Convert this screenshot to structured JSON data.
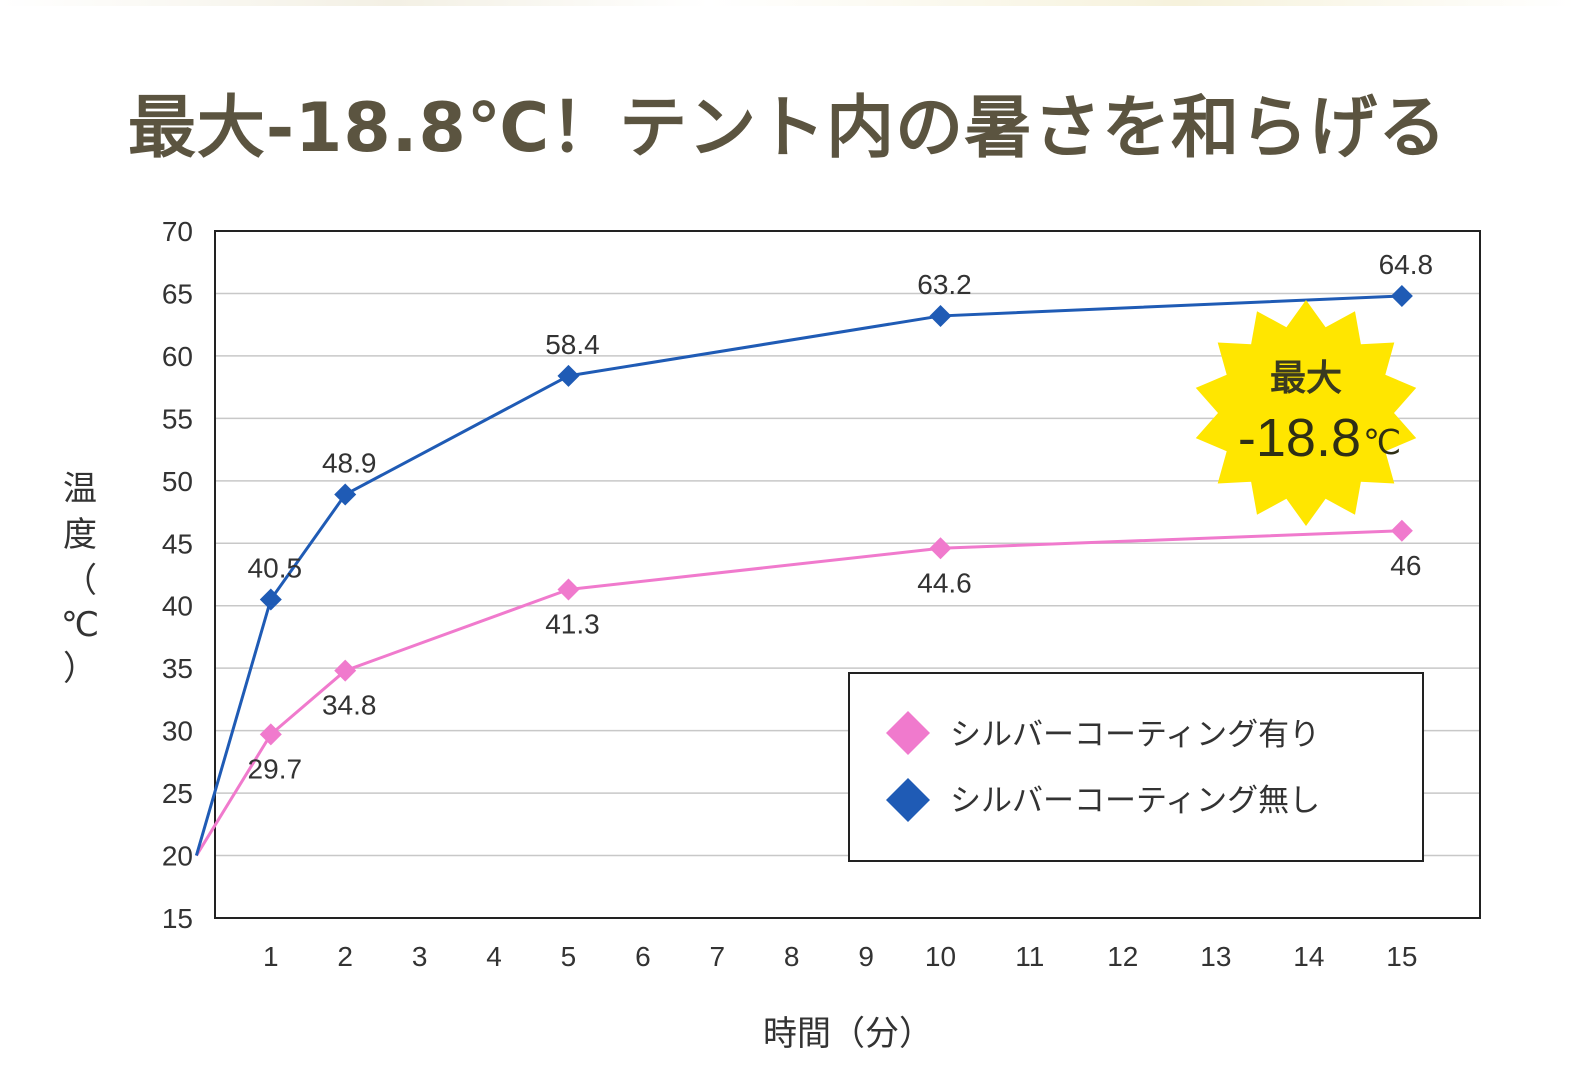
{
  "headline": "最大-18.8℃！テント内の暑さを和らげる",
  "badge": {
    "line1": "最大",
    "value": "-18.8",
    "unit": "℃",
    "color": "#ffe600"
  },
  "chart_data": {
    "type": "line",
    "title": "最大-18.8℃！テント内の暑さを和らげる",
    "xlabel": "時間（分）",
    "ylabel_chars": [
      "温",
      "度",
      "（",
      "℃",
      "）"
    ],
    "xlim": [
      0.25,
      17.25
    ],
    "ylim": [
      15,
      70
    ],
    "x_ticks": [
      1,
      2,
      3,
      4,
      5,
      6,
      7,
      8,
      9,
      10,
      11,
      12,
      13,
      14,
      15
    ],
    "x_tick_labels": [
      "1",
      "2",
      "3",
      "4",
      "5",
      "6",
      "7",
      "8",
      "9",
      "10",
      "11",
      "12",
      "13",
      "14",
      "15"
    ],
    "x_tick_slots": [
      1,
      2,
      3,
      4,
      5,
      6,
      7,
      8,
      9,
      10,
      11.2,
      12.45,
      13.7,
      14.95,
      16.2
    ],
    "y_ticks": [
      15,
      20,
      25,
      30,
      35,
      40,
      45,
      50,
      55,
      60,
      65,
      70
    ],
    "grid": true,
    "legend_position": "bottom-right",
    "series": [
      {
        "name": "シルバーコーティング有り",
        "color": "#f07acd",
        "x": [
          0,
          1,
          2,
          5,
          10,
          15
        ],
        "values": [
          20,
          29.7,
          34.8,
          41.3,
          44.6,
          46
        ],
        "labels": [
          "",
          "29.7",
          "34.8",
          "41.3",
          "44.6",
          "46"
        ],
        "label_side": [
          "",
          "below",
          "below",
          "below",
          "below",
          "below"
        ]
      },
      {
        "name": "シルバーコーティング無し",
        "color": "#1f5bb5",
        "x": [
          0,
          1,
          2,
          5,
          10,
          15
        ],
        "values": [
          20,
          40.5,
          48.9,
          58.4,
          63.2,
          64.8
        ],
        "labels": [
          "",
          "40.5",
          "48.9",
          "58.4",
          "63.2",
          "64.8"
        ],
        "label_side": [
          "",
          "above",
          "above",
          "above",
          "above",
          "above"
        ]
      }
    ]
  }
}
